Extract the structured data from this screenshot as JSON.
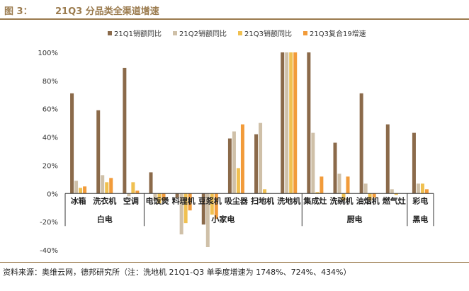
{
  "figure": {
    "prefix": "图 3：",
    "title": "21Q3 分品类全渠道增速",
    "source": "资料来源：奥维云网，德邦研究所（注：洗地机 21Q1-Q3 单季度增速为 1748%、724%、434%）"
  },
  "colors": {
    "title": "#9b7b4e",
    "rule": "#9b7b4e",
    "q1": "#8b6a4a",
    "q2": "#cfc0a8",
    "q3": "#f0c050",
    "ytd": "#f29b3a"
  },
  "chart_data": {
    "type": "bar",
    "title": "21Q3 分品类全渠道增速",
    "categories": [
      "冰箱",
      "洗衣机",
      "空调",
      "电饭煲",
      "料理机",
      "豆浆机",
      "吸尘器",
      "扫地机",
      "洗地机",
      "集成灶",
      "洗碗机",
      "油烟机",
      "燃气灶",
      "彩电"
    ],
    "groups": [
      {
        "label": "白电",
        "categories": [
          "冰箱",
          "洗衣机",
          "空调"
        ]
      },
      {
        "label": "小家电",
        "categories": [
          "电饭煲",
          "料理机",
          "豆浆机",
          "吸尘器",
          "扫地机",
          "洗地机"
        ]
      },
      {
        "label": "厨电",
        "categories": [
          "集成灶",
          "洗碗机",
          "油烟机",
          "燃气灶"
        ]
      },
      {
        "label": "黑电",
        "categories": [
          "彩电"
        ]
      }
    ],
    "series": [
      {
        "name": "21Q1销额同比",
        "values": [
          71,
          59,
          89,
          15,
          -3,
          -22,
          39,
          42,
          100,
          100,
          36,
          71,
          49,
          43
        ]
      },
      {
        "name": "21Q2销额同比",
        "values": [
          9,
          13,
          -2,
          -5,
          -29,
          -38,
          44,
          50,
          100,
          43,
          14,
          7,
          3,
          7
        ]
      },
      {
        "name": "21Q3销额同比",
        "values": [
          4,
          8,
          8,
          -7,
          -21,
          -15,
          18,
          3,
          100,
          1,
          -5,
          -5,
          -1,
          7
        ]
      },
      {
        "name": "21Q3复合19增速",
        "values": [
          5,
          11,
          2,
          -5,
          -12,
          -18,
          49,
          0,
          100,
          12,
          12,
          -3,
          0,
          3
        ]
      }
    ],
    "ylim": [
      -40,
      100
    ],
    "yticks": [
      -40,
      -20,
      0,
      20,
      40,
      60,
      80,
      100
    ],
    "ytick_labels": [
      "-40%",
      "-20%",
      "0%",
      "20%",
      "40%",
      "60%",
      "80%",
      "100%"
    ],
    "legend_position": "top",
    "grid": false
  }
}
